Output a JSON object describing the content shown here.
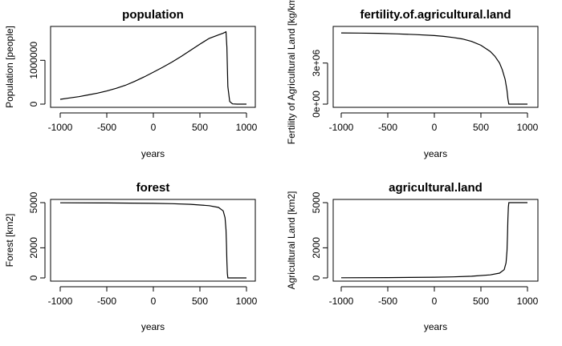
{
  "chart_data": [
    {
      "type": "line",
      "title": "population",
      "xlabel": "years",
      "ylabel": "Population [people]",
      "xlim": [
        -1000,
        1000
      ],
      "ylim": [
        0,
        1700000
      ],
      "xticks": [
        -1000,
        -500,
        0,
        500,
        1000
      ],
      "xtick_labels": [
        "-1000",
        "-500",
        "0",
        "500",
        "1000"
      ],
      "yticks": [
        0,
        1000000
      ],
      "ytick_labels": [
        "0",
        "1000000"
      ],
      "series": [
        {
          "x": [
            -1000,
            -900,
            -800,
            -700,
            -600,
            -500,
            -400,
            -300,
            -200,
            -100,
            0,
            100,
            200,
            300,
            400,
            500,
            600,
            700,
            750,
            780,
            790,
            800,
            820,
            850,
            900,
            950,
            1000
          ],
          "values": [
            110000,
            140000,
            170000,
            210000,
            250000,
            300000,
            360000,
            430000,
            520000,
            620000,
            730000,
            840000,
            960000,
            1090000,
            1230000,
            1370000,
            1500000,
            1580000,
            1620000,
            1650000,
            1300000,
            400000,
            60000,
            5000,
            0,
            0,
            0
          ]
        }
      ]
    },
    {
      "type": "line",
      "title": "fertility.of.agricultural.land",
      "xlabel": "years",
      "ylabel": "Fertility of Agricultural Land [kg/km2]",
      "xlim": [
        -1000,
        1000
      ],
      "ylim": [
        0,
        5500000
      ],
      "xticks": [
        -1000,
        -500,
        0,
        500,
        1000
      ],
      "xtick_labels": [
        "-1000",
        "-500",
        "0",
        "500",
        "1000"
      ],
      "yticks": [
        0,
        3000000
      ],
      "ytick_labels": [
        "0e+00",
        "3e+06"
      ],
      "series": [
        {
          "x": [
            -1000,
            -800,
            -600,
            -400,
            -200,
            0,
            100,
            200,
            300,
            400,
            500,
            600,
            650,
            700,
            730,
            760,
            780,
            790,
            800,
            1000
          ],
          "values": [
            5200000,
            5190000,
            5170000,
            5130000,
            5080000,
            5010000,
            4950000,
            4870000,
            4760000,
            4580000,
            4300000,
            3850000,
            3500000,
            3000000,
            2500000,
            1800000,
            1000000,
            400000,
            0,
            0
          ]
        }
      ]
    },
    {
      "type": "line",
      "title": "forest",
      "xlabel": "years",
      "ylabel": "Forest [km2]",
      "xlim": [
        -1000,
        1000
      ],
      "ylim": [
        0,
        5000
      ],
      "xticks": [
        -1000,
        -500,
        0,
        500,
        1000
      ],
      "xtick_labels": [
        "-1000",
        "-500",
        "0",
        "500",
        "1000"
      ],
      "yticks": [
        0,
        2000,
        5000
      ],
      "ytick_labels": [
        "0",
        "2000",
        "5000"
      ],
      "series": [
        {
          "x": [
            -1000,
            -500,
            0,
            200,
            400,
            600,
            700,
            750,
            770,
            780,
            785,
            790,
            795,
            800,
            1000
          ],
          "values": [
            4990,
            4980,
            4950,
            4930,
            4890,
            4800,
            4680,
            4450,
            4000,
            3200,
            2200,
            1100,
            300,
            0,
            0
          ]
        }
      ]
    },
    {
      "type": "line",
      "title": "agricultural.land",
      "xlabel": "years",
      "ylabel": "Agricultural Land [km2]",
      "xlim": [
        -1000,
        1000
      ],
      "ylim": [
        0,
        5000
      ],
      "xticks": [
        -1000,
        -500,
        0,
        500,
        1000
      ],
      "xtick_labels": [
        "-1000",
        "-500",
        "0",
        "500",
        "1000"
      ],
      "yticks": [
        0,
        2000,
        5000
      ],
      "ytick_labels": [
        "0",
        "2000",
        "5000"
      ],
      "series": [
        {
          "x": [
            -1000,
            -500,
            0,
            200,
            400,
            600,
            700,
            750,
            770,
            780,
            785,
            790,
            795,
            800,
            1000
          ],
          "values": [
            10,
            20,
            50,
            70,
            110,
            200,
            320,
            550,
            1000,
            1800,
            2800,
            3900,
            4700,
            5000,
            5000
          ]
        }
      ]
    }
  ]
}
